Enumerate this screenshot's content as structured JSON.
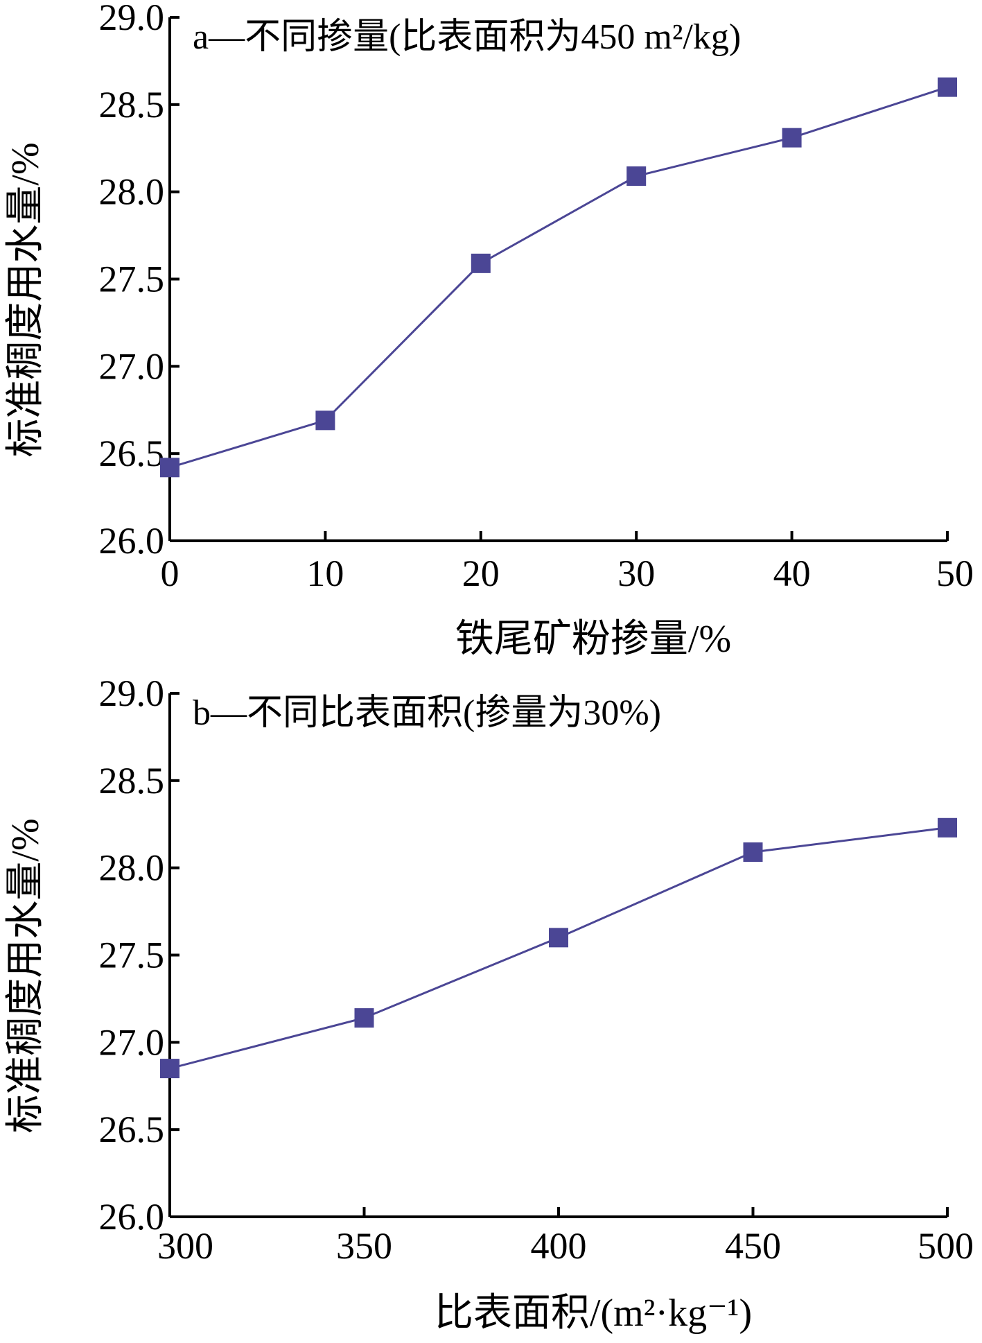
{
  "colors": {
    "series": "#4b4695",
    "axis": "#000000"
  },
  "chart_data": [
    {
      "type": "line",
      "title": "a—不同掺量(比表面积为450 m²/kg)",
      "xlabel": "铁尾矿粉掺量/%",
      "ylabel": "标准稠度用水量/%",
      "x": [
        0,
        10,
        20,
        30,
        40,
        50
      ],
      "x_tick_labels": [
        "0",
        "10",
        "20",
        "30",
        "40",
        "50"
      ],
      "xlim": [
        0,
        50
      ],
      "ylim": [
        26.0,
        29.0
      ],
      "y_tick_labels": [
        "26.0",
        "26.5",
        "27.0",
        "27.5",
        "28.0",
        "28.5",
        "29.0"
      ],
      "series": [
        {
          "values": [
            26.42,
            26.69,
            27.59,
            28.09,
            28.31,
            28.6
          ]
        }
      ],
      "marker": "square",
      "grid": false
    },
    {
      "type": "line",
      "title": "b—不同比表面积(掺量为30%)",
      "xlabel": "比表面积/(m²·kg⁻¹)",
      "ylabel": "标准稠度用水量/%",
      "x": [
        300,
        350,
        400,
        450,
        500
      ],
      "x_tick_labels": [
        "300",
        "350",
        "400",
        "450",
        "500"
      ],
      "xlim": [
        300,
        500
      ],
      "ylim": [
        26.0,
        29.0
      ],
      "y_tick_labels": [
        "26.0",
        "26.5",
        "27.0",
        "27.5",
        "28.0",
        "28.5",
        "29.0"
      ],
      "series": [
        {
          "values": [
            26.85,
            27.14,
            27.6,
            28.09,
            28.23
          ]
        }
      ],
      "marker": "square",
      "grid": false
    }
  ]
}
